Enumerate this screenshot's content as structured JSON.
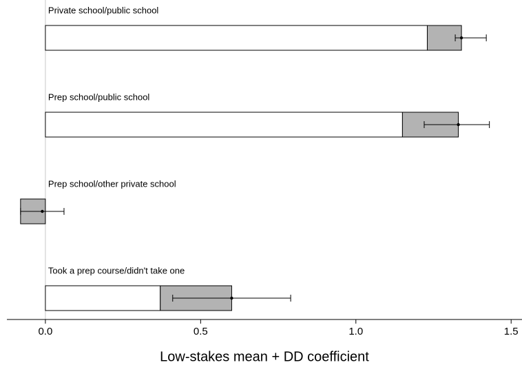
{
  "chart_data": {
    "type": "bar",
    "orientation": "horizontal",
    "xlabel": "Low-stakes mean + DD coefficient",
    "categories": [
      "Private school/public school",
      "Prep school/public school",
      "Prep school/other private school",
      "Took a prep course/didn't take one"
    ],
    "series": [
      {
        "color": "#ffffff",
        "values": [
          1.23,
          1.15,
          0,
          0.37
        ]
      },
      {
        "color": "#b3b3b3",
        "values": [
          0.11,
          0.18,
          -0.08,
          0.23
        ]
      }
    ],
    "points": {
      "color": "#000000",
      "values": [
        1.34,
        1.33,
        -0.01,
        0.6
      ],
      "ci_low": [
        1.32,
        1.22,
        -0.08,
        0.41
      ],
      "ci_high": [
        1.42,
        1.43,
        0.06,
        0.79
      ]
    },
    "xlim": [
      -0.124,
      1.535
    ],
    "xticks": [
      {
        "value": 0,
        "label": "0.0"
      },
      {
        "value": 0.5,
        "label": "0.5"
      },
      {
        "value": 1,
        "label": "1.0"
      },
      {
        "value": 1.5,
        "label": "1.5"
      }
    ],
    "zero_line": true
  }
}
